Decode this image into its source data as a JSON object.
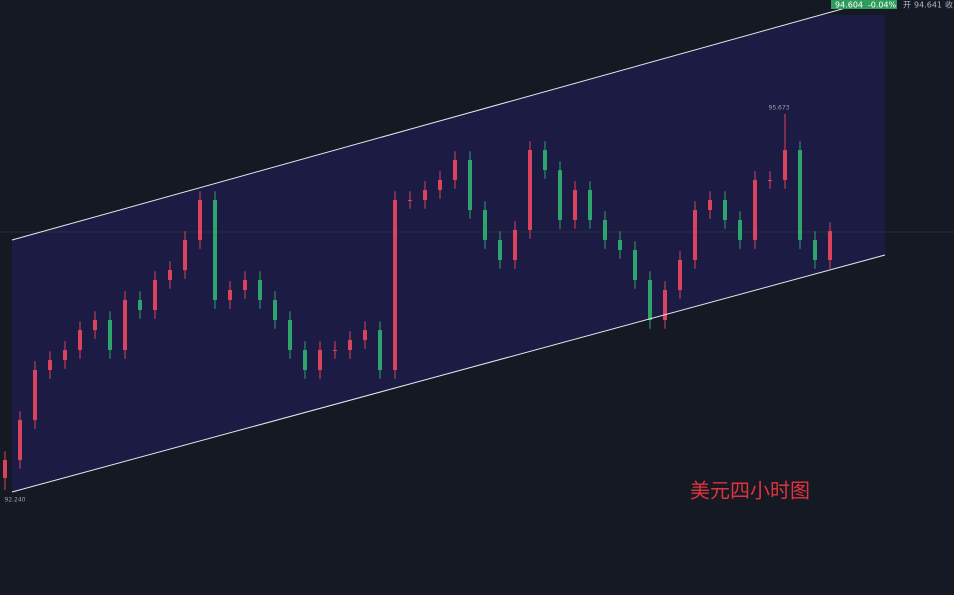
{
  "chart_data": {
    "type": "candlestick",
    "annotation": "美元四小时图",
    "max_label": "95.673",
    "min_label": "92.240",
    "last_price": "94.604",
    "change": "-0.04%",
    "open_label": "开",
    "open_value": "94.641",
    "close_label": "收",
    "up_color": "#d9435e",
    "down_color": "#2ea36b",
    "ylim": [
      91.281,
      96.714
    ],
    "open": [
      92.35,
      92.513,
      92.878,
      93.335,
      93.426,
      93.518,
      93.7,
      93.792,
      93.518,
      93.974,
      93.883,
      94.157,
      94.248,
      94.522,
      94.888,
      93.974,
      94.066,
      94.157,
      93.974,
      93.792,
      93.518,
      93.335,
      93.518,
      93.518,
      93.609,
      93.7,
      93.335,
      94.888,
      94.888,
      94.979,
      95.07,
      95.253,
      94.796,
      94.522,
      94.34,
      94.614,
      95.344,
      95.161,
      94.705,
      94.979,
      94.705,
      94.522,
      94.431,
      94.157,
      93.792,
      94.066,
      94.34,
      94.796,
      94.888,
      94.705,
      94.522,
      95.07,
      95.07,
      95.344,
      94.522,
      94.34
    ],
    "high": [
      92.593,
      92.958,
      93.415,
      93.506,
      93.598,
      93.78,
      93.872,
      93.872,
      94.054,
      94.054,
      94.237,
      94.328,
      94.602,
      94.968,
      94.968,
      94.146,
      94.237,
      94.237,
      94.054,
      93.872,
      93.598,
      93.598,
      93.598,
      93.689,
      93.78,
      93.78,
      94.968,
      94.968,
      95.059,
      95.15,
      95.333,
      95.333,
      94.876,
      94.602,
      94.694,
      95.424,
      95.424,
      95.241,
      95.059,
      95.059,
      94.785,
      94.602,
      94.511,
      94.237,
      94.146,
      94.42,
      94.876,
      94.968,
      94.968,
      94.785,
      95.15,
      95.15,
      95.673,
      95.424,
      94.602,
      94.684
    ],
    "low": [
      92.24,
      92.433,
      92.798,
      93.255,
      93.346,
      93.438,
      93.62,
      93.438,
      93.438,
      93.803,
      93.803,
      94.077,
      94.168,
      94.442,
      93.894,
      93.894,
      93.986,
      93.894,
      93.712,
      93.438,
      93.255,
      93.255,
      93.438,
      93.438,
      93.529,
      93.255,
      93.255,
      94.808,
      94.808,
      94.899,
      94.99,
      94.716,
      94.442,
      94.26,
      94.26,
      94.534,
      95.081,
      94.625,
      94.625,
      94.625,
      94.442,
      94.351,
      94.077,
      93.712,
      93.712,
      93.986,
      94.26,
      94.716,
      94.625,
      94.442,
      94.442,
      94.99,
      94.99,
      94.442,
      94.26,
      94.26
    ],
    "close": [
      92.513,
      92.878,
      93.335,
      93.426,
      93.518,
      93.7,
      93.792,
      93.518,
      93.974,
      93.883,
      94.157,
      94.248,
      94.522,
      94.888,
      93.974,
      94.066,
      94.157,
      93.974,
      93.792,
      93.518,
      93.335,
      93.518,
      93.518,
      93.609,
      93.7,
      93.335,
      94.888,
      94.888,
      94.979,
      95.07,
      95.253,
      94.796,
      94.522,
      94.34,
      94.614,
      95.344,
      95.161,
      94.705,
      94.979,
      94.705,
      94.522,
      94.431,
      94.157,
      93.792,
      94.066,
      94.34,
      94.796,
      94.888,
      94.705,
      94.522,
      95.07,
      95.07,
      95.344,
      94.522,
      94.34,
      94.604
    ]
  }
}
